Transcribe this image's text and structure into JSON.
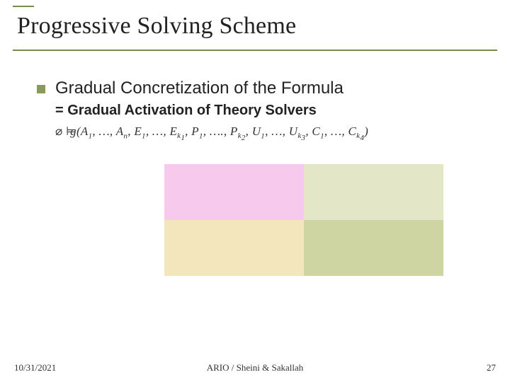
{
  "title": "Progressive Solving Scheme",
  "bullet": {
    "text": "Gradual Concretization of the Formula"
  },
  "sub_line": "= Gradual Activation of Theory Solvers",
  "formula": {
    "prefix_symbols": "⌀ ⊨",
    "body": "g(A₁, …, Aₙ, E₁, …, Eₖ₁, P₁, …., Pₖ₂, U₁, …, Uₖ₃, C₁, …, Cₖ₄)"
  },
  "grid": {
    "colors": {
      "top_left": "#f7c9ec",
      "top_right": "#e4e7c7",
      "bottom_left": "#f3e6bd",
      "bottom_right": "#cfd5a2"
    }
  },
  "footer": {
    "date": "10/31/2021",
    "center": "ARIO / Sheini & Sakallah",
    "page": "27"
  },
  "colors": {
    "accent": "#7a8a4a",
    "bullet": "#8a9a5b"
  }
}
